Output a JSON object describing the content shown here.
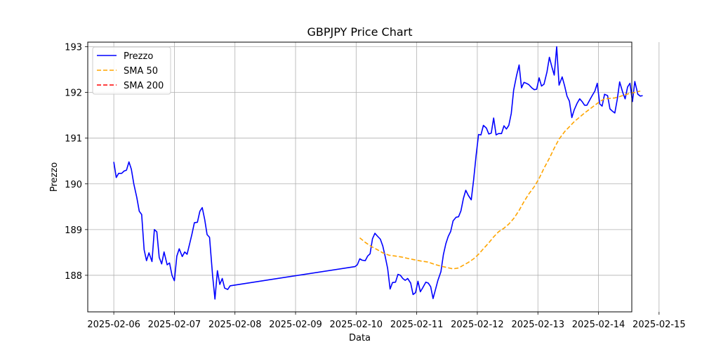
{
  "chart_data": {
    "type": "line",
    "title": "GBPJPY Price Chart",
    "xlabel": "Data",
    "ylabel": "Prezzo",
    "xlim": [
      -0.43,
      8.55
    ],
    "ylim": [
      187.2,
      193.1
    ],
    "grid": true,
    "legend_position": "top-left",
    "x_ticks": [
      {
        "label": "2025-02-06",
        "value": 0
      },
      {
        "label": "2025-02-07",
        "value": 1
      },
      {
        "label": "2025-02-08",
        "value": 2
      },
      {
        "label": "2025-02-09",
        "value": 3
      },
      {
        "label": "2025-02-10",
        "value": 4
      },
      {
        "label": "2025-02-11",
        "value": 5
      },
      {
        "label": "2025-02-12",
        "value": 6
      },
      {
        "label": "2025-02-13",
        "value": 7
      },
      {
        "label": "2025-02-14",
        "value": 8
      },
      {
        "label": "2025-02-15",
        "value": 9
      }
    ],
    "y_ticks": [
      188,
      189,
      190,
      191,
      192,
      193
    ],
    "series": [
      {
        "name": "Prezzo",
        "color": "#0000ff",
        "dash": "solid",
        "points": [
          [
            0.0,
            190.48
          ],
          [
            0.04,
            190.14
          ],
          [
            0.08,
            190.23
          ],
          [
            0.13,
            190.23
          ],
          [
            0.17,
            190.28
          ],
          [
            0.21,
            190.3
          ],
          [
            0.25,
            190.48
          ],
          [
            0.29,
            190.32
          ],
          [
            0.33,
            190.0
          ],
          [
            0.38,
            189.7
          ],
          [
            0.42,
            189.4
          ],
          [
            0.46,
            189.33
          ],
          [
            0.5,
            188.56
          ],
          [
            0.54,
            188.32
          ],
          [
            0.58,
            188.49
          ],
          [
            0.63,
            188.3
          ],
          [
            0.67,
            189.0
          ],
          [
            0.71,
            188.95
          ],
          [
            0.75,
            188.39
          ],
          [
            0.79,
            188.25
          ],
          [
            0.83,
            188.51
          ],
          [
            0.88,
            188.23
          ],
          [
            0.92,
            188.27
          ],
          [
            0.96,
            188.0
          ],
          [
            1.0,
            187.88
          ],
          [
            1.04,
            188.42
          ],
          [
            1.08,
            188.58
          ],
          [
            1.13,
            188.41
          ],
          [
            1.17,
            188.51
          ],
          [
            1.21,
            188.46
          ],
          [
            1.25,
            188.68
          ],
          [
            1.29,
            188.9
          ],
          [
            1.33,
            189.15
          ],
          [
            1.38,
            189.16
          ],
          [
            1.42,
            189.4
          ],
          [
            1.46,
            189.48
          ],
          [
            1.5,
            189.22
          ],
          [
            1.54,
            188.89
          ],
          [
            1.58,
            188.83
          ],
          [
            1.63,
            188.0
          ],
          [
            1.67,
            187.48
          ],
          [
            1.71,
            188.1
          ],
          [
            1.75,
            187.8
          ],
          [
            1.79,
            187.93
          ],
          [
            1.83,
            187.72
          ],
          [
            1.88,
            187.69
          ],
          [
            1.92,
            187.77
          ],
          [
            3.98,
            188.19
          ],
          [
            4.02,
            188.23
          ],
          [
            4.06,
            188.36
          ],
          [
            4.1,
            188.33
          ],
          [
            4.15,
            188.32
          ],
          [
            4.19,
            188.42
          ],
          [
            4.23,
            188.47
          ],
          [
            4.27,
            188.8
          ],
          [
            4.31,
            188.92
          ],
          [
            4.35,
            188.86
          ],
          [
            4.4,
            188.79
          ],
          [
            4.44,
            188.64
          ],
          [
            4.48,
            188.41
          ],
          [
            4.52,
            188.15
          ],
          [
            4.56,
            187.7
          ],
          [
            4.6,
            187.84
          ],
          [
            4.65,
            187.85
          ],
          [
            4.69,
            188.02
          ],
          [
            4.73,
            188.0
          ],
          [
            4.77,
            187.93
          ],
          [
            4.81,
            187.89
          ],
          [
            4.85,
            187.93
          ],
          [
            4.9,
            187.83
          ],
          [
            4.94,
            187.58
          ],
          [
            4.98,
            187.62
          ],
          [
            5.02,
            187.87
          ],
          [
            5.06,
            187.64
          ],
          [
            5.1,
            187.73
          ],
          [
            5.15,
            187.85
          ],
          [
            5.19,
            187.83
          ],
          [
            5.23,
            187.75
          ],
          [
            5.27,
            187.49
          ],
          [
            5.31,
            187.69
          ],
          [
            5.35,
            187.89
          ],
          [
            5.4,
            188.08
          ],
          [
            5.44,
            188.45
          ],
          [
            5.48,
            188.69
          ],
          [
            5.52,
            188.85
          ],
          [
            5.56,
            188.96
          ],
          [
            5.6,
            189.19
          ],
          [
            5.65,
            189.27
          ],
          [
            5.69,
            189.28
          ],
          [
            5.73,
            189.41
          ],
          [
            5.77,
            189.68
          ],
          [
            5.81,
            189.86
          ],
          [
            5.85,
            189.75
          ],
          [
            5.9,
            189.65
          ],
          [
            5.94,
            190.09
          ],
          [
            5.98,
            190.62
          ],
          [
            6.02,
            191.08
          ],
          [
            6.06,
            191.07
          ],
          [
            6.1,
            191.28
          ],
          [
            6.15,
            191.22
          ],
          [
            6.19,
            191.09
          ],
          [
            6.23,
            191.11
          ],
          [
            6.27,
            191.44
          ],
          [
            6.31,
            191.07
          ],
          [
            6.35,
            191.1
          ],
          [
            6.4,
            191.1
          ],
          [
            6.44,
            191.27
          ],
          [
            6.48,
            191.2
          ],
          [
            6.52,
            191.28
          ],
          [
            6.56,
            191.54
          ],
          [
            6.6,
            192.05
          ],
          [
            6.65,
            192.38
          ],
          [
            6.69,
            192.6
          ],
          [
            6.73,
            192.1
          ],
          [
            6.77,
            192.22
          ],
          [
            6.81,
            192.2
          ],
          [
            6.85,
            192.17
          ],
          [
            6.9,
            192.1
          ],
          [
            6.94,
            192.06
          ],
          [
            6.98,
            192.07
          ],
          [
            7.02,
            192.32
          ],
          [
            7.06,
            192.14
          ],
          [
            7.1,
            192.18
          ],
          [
            7.15,
            192.45
          ],
          [
            7.19,
            192.77
          ],
          [
            7.23,
            192.56
          ],
          [
            7.27,
            192.38
          ],
          [
            7.31,
            193.0
          ],
          [
            7.35,
            192.16
          ],
          [
            7.4,
            192.34
          ],
          [
            7.44,
            192.15
          ],
          [
            7.48,
            191.92
          ],
          [
            7.52,
            191.81
          ],
          [
            7.56,
            191.45
          ],
          [
            7.6,
            191.62
          ],
          [
            7.65,
            191.77
          ],
          [
            7.69,
            191.86
          ],
          [
            7.73,
            191.8
          ],
          [
            7.77,
            191.72
          ],
          [
            7.81,
            191.72
          ],
          [
            7.85,
            191.82
          ],
          [
            7.9,
            191.94
          ],
          [
            7.94,
            192.03
          ],
          [
            7.98,
            192.2
          ],
          [
            8.02,
            191.75
          ],
          [
            8.06,
            191.7
          ],
          [
            8.1,
            191.96
          ],
          [
            8.15,
            191.93
          ],
          [
            8.19,
            191.64
          ],
          [
            8.23,
            191.59
          ],
          [
            8.27,
            191.55
          ],
          [
            8.31,
            191.85
          ],
          [
            8.35,
            192.23
          ],
          [
            8.4,
            192.0
          ],
          [
            8.44,
            191.86
          ],
          [
            8.48,
            192.12
          ],
          [
            8.52,
            192.2
          ],
          [
            8.56,
            191.8
          ],
          [
            8.6,
            192.24
          ],
          [
            8.65,
            191.96
          ],
          [
            8.69,
            191.92
          ],
          [
            8.73,
            191.93
          ]
        ]
      },
      {
        "name": "SMA 50",
        "color": "#ffa500",
        "dash": "dashed",
        "points": [
          [
            4.06,
            188.82
          ],
          [
            4.15,
            188.72
          ],
          [
            4.25,
            188.63
          ],
          [
            4.35,
            188.56
          ],
          [
            4.44,
            188.49
          ],
          [
            4.54,
            188.44
          ],
          [
            4.65,
            188.42
          ],
          [
            4.75,
            188.4
          ],
          [
            4.85,
            188.37
          ],
          [
            4.96,
            188.34
          ],
          [
            5.08,
            188.31
          ],
          [
            5.19,
            188.29
          ],
          [
            5.29,
            188.24
          ],
          [
            5.4,
            188.2
          ],
          [
            5.5,
            188.17
          ],
          [
            5.6,
            188.14
          ],
          [
            5.69,
            188.16
          ],
          [
            5.77,
            188.22
          ],
          [
            5.85,
            188.28
          ],
          [
            5.94,
            188.36
          ],
          [
            6.02,
            188.46
          ],
          [
            6.1,
            188.58
          ],
          [
            6.19,
            188.71
          ],
          [
            6.27,
            188.84
          ],
          [
            6.35,
            188.95
          ],
          [
            6.44,
            189.03
          ],
          [
            6.52,
            189.12
          ],
          [
            6.6,
            189.24
          ],
          [
            6.69,
            189.42
          ],
          [
            6.77,
            189.61
          ],
          [
            6.85,
            189.78
          ],
          [
            6.94,
            189.94
          ],
          [
            7.02,
            190.12
          ],
          [
            7.1,
            190.34
          ],
          [
            7.19,
            190.56
          ],
          [
            7.27,
            190.78
          ],
          [
            7.35,
            190.98
          ],
          [
            7.44,
            191.14
          ],
          [
            7.52,
            191.25
          ],
          [
            7.6,
            191.36
          ],
          [
            7.69,
            191.46
          ],
          [
            7.77,
            191.55
          ],
          [
            7.85,
            191.63
          ],
          [
            7.94,
            191.72
          ],
          [
            8.02,
            191.8
          ],
          [
            8.1,
            191.86
          ],
          [
            8.19,
            191.87
          ],
          [
            8.27,
            191.88
          ],
          [
            8.35,
            191.91
          ],
          [
            8.44,
            191.95
          ],
          [
            8.52,
            191.98
          ],
          [
            8.6,
            192.0
          ],
          [
            8.69,
            192.03
          ]
        ]
      },
      {
        "name": "SMA 200",
        "color": "#ff0000",
        "dash": "dashed",
        "points": []
      }
    ]
  }
}
